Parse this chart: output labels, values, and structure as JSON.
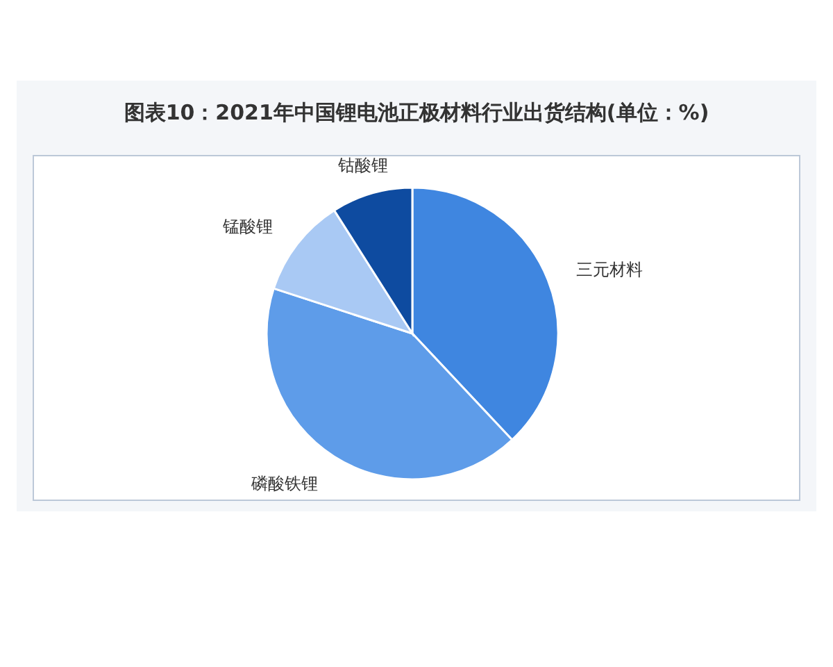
{
  "chart_data": {
    "type": "pie",
    "title": "图表10：2021年中国锂电池正极材料行业出货结构(单位：%)",
    "categories": [
      "三元材料",
      "磷酸铁锂",
      "锰酸锂",
      "钴酸锂"
    ],
    "values": [
      38,
      42,
      11,
      9
    ],
    "colors": [
      "#3f86e0",
      "#5e9ce9",
      "#a9c9f4",
      "#0e4ba0"
    ]
  }
}
